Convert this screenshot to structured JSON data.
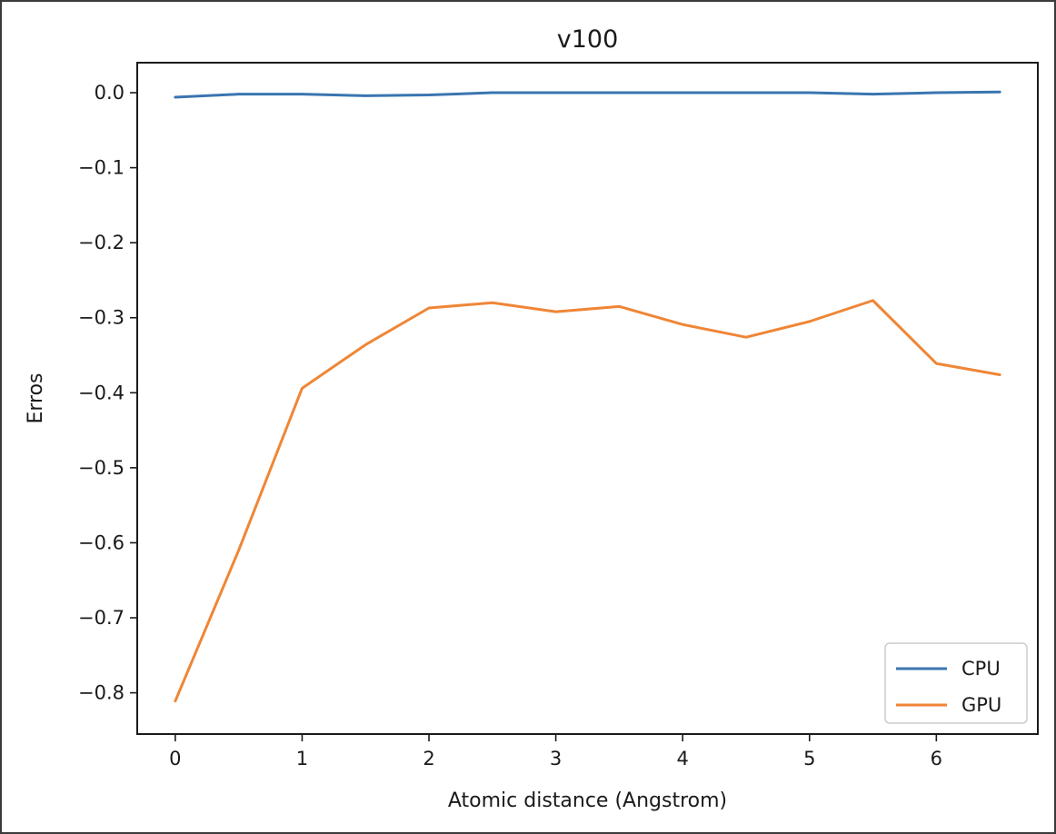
{
  "chart_data": {
    "type": "line",
    "title": "v100",
    "xlabel": "Atomic distance (Angstrom)",
    "ylabel": "Erros",
    "xlim": [
      -0.3,
      6.8
    ],
    "ylim": [
      -0.855,
      0.04
    ],
    "xticks": [
      0,
      1,
      2,
      3,
      4,
      5,
      6
    ],
    "xtick_labels": [
      "0",
      "1",
      "2",
      "3",
      "4",
      "5",
      "6"
    ],
    "yticks": [
      0.0,
      -0.1,
      -0.2,
      -0.3,
      -0.4,
      -0.5,
      -0.6,
      -0.7,
      -0.8
    ],
    "ytick_labels": [
      "0.0",
      "−0.1",
      "−0.2",
      "−0.3",
      "−0.4",
      "−0.5",
      "−0.6",
      "−0.7",
      "−0.8"
    ],
    "x": [
      0,
      0.5,
      1,
      1.5,
      2,
      2.5,
      3,
      3.5,
      4,
      4.5,
      5,
      5.5,
      6,
      6.5
    ],
    "series": [
      {
        "name": "CPU",
        "color": "#3a75b0",
        "values": [
          -0.006,
          -0.002,
          -0.002,
          -0.004,
          -0.003,
          0.0,
          0.0,
          0.0,
          0.0,
          0.0,
          0.0,
          -0.002,
          0.0,
          0.001
        ]
      },
      {
        "name": "GPU",
        "color": "#ef8636",
        "values": [
          -0.811,
          -0.61,
          -0.394,
          -0.336,
          -0.287,
          -0.28,
          -0.292,
          -0.285,
          -0.309,
          -0.326,
          -0.305,
          -0.277,
          -0.361,
          -0.376
        ]
      }
    ],
    "grid": false,
    "legend": "bottom-right"
  }
}
